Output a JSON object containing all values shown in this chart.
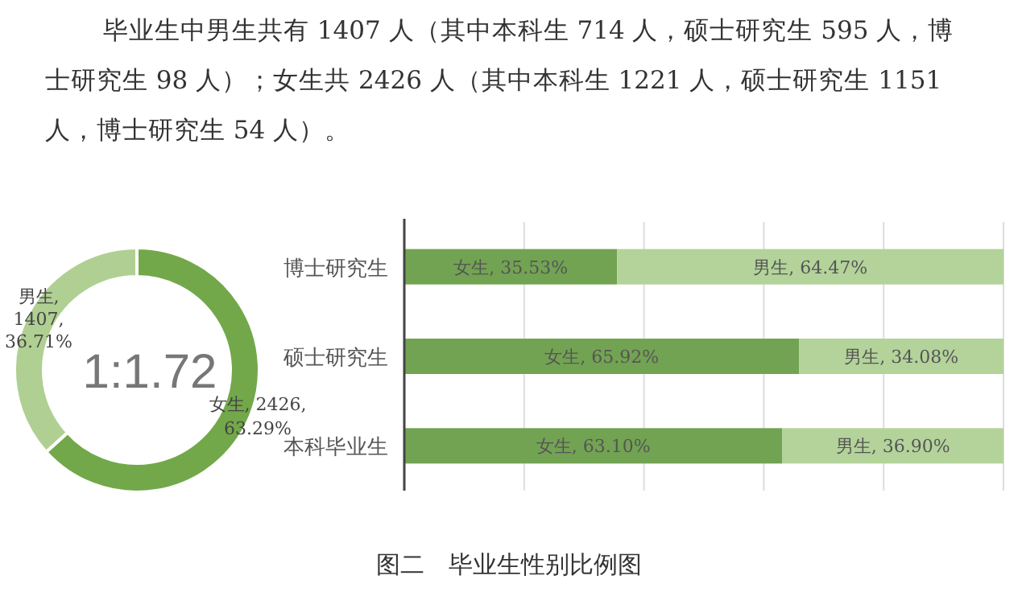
{
  "chart_data": [
    {
      "type": "donut",
      "categories": [
        null,
        null
      ],
      "values": [
        2426,
        1407
      ],
      "value_labels": [
        "女生, 2426, 63.29%",
        "男生, 1407, 36.71%"
      ],
      "colors": [
        "#72a84a",
        "#afd092"
      ],
      "annotations": [
        "毕业生中男生共有 1407 人（其中本科生 714 人，硕士研究生 595 人，博士研究生 98 人）；女生共 2426 人（其中本科生 1221 人，硕士研究生 1151 人，博士研究生 54 人）。",
        "1:1.72",
        "图二　毕业生性别比例图"
      ]
    },
    {
      "type": "bar",
      "orientation": "horizontal",
      "stacked": true,
      "categories": [
        "博士研究生",
        "硕士研究生",
        "本科毕业生"
      ],
      "series": [
        {
          "color": "#72a352",
          "values": [
            35.53,
            65.92,
            63.1
          ],
          "value_labels": [
            "女生, 35.53%",
            "女生, 65.92%",
            "女生, 63.10%"
          ]
        },
        {
          "color": "#b3d39a",
          "values": [
            64.47,
            34.08,
            36.9
          ],
          "value_labels": [
            "男生, 64.47%",
            "男生, 34.08%",
            "男生, 36.90%"
          ]
        }
      ],
      "xlim": [
        0,
        100
      ],
      "xticks": [
        {
          "value": 0,
          "label": null
        },
        {
          "value": 20,
          "label": null
        },
        {
          "value": 40,
          "label": null
        },
        {
          "value": 60,
          "label": null
        },
        {
          "value": 80,
          "label": null
        },
        {
          "value": 100,
          "label": null
        }
      ],
      "grid": "x",
      "tick_labels": "y"
    }
  ]
}
